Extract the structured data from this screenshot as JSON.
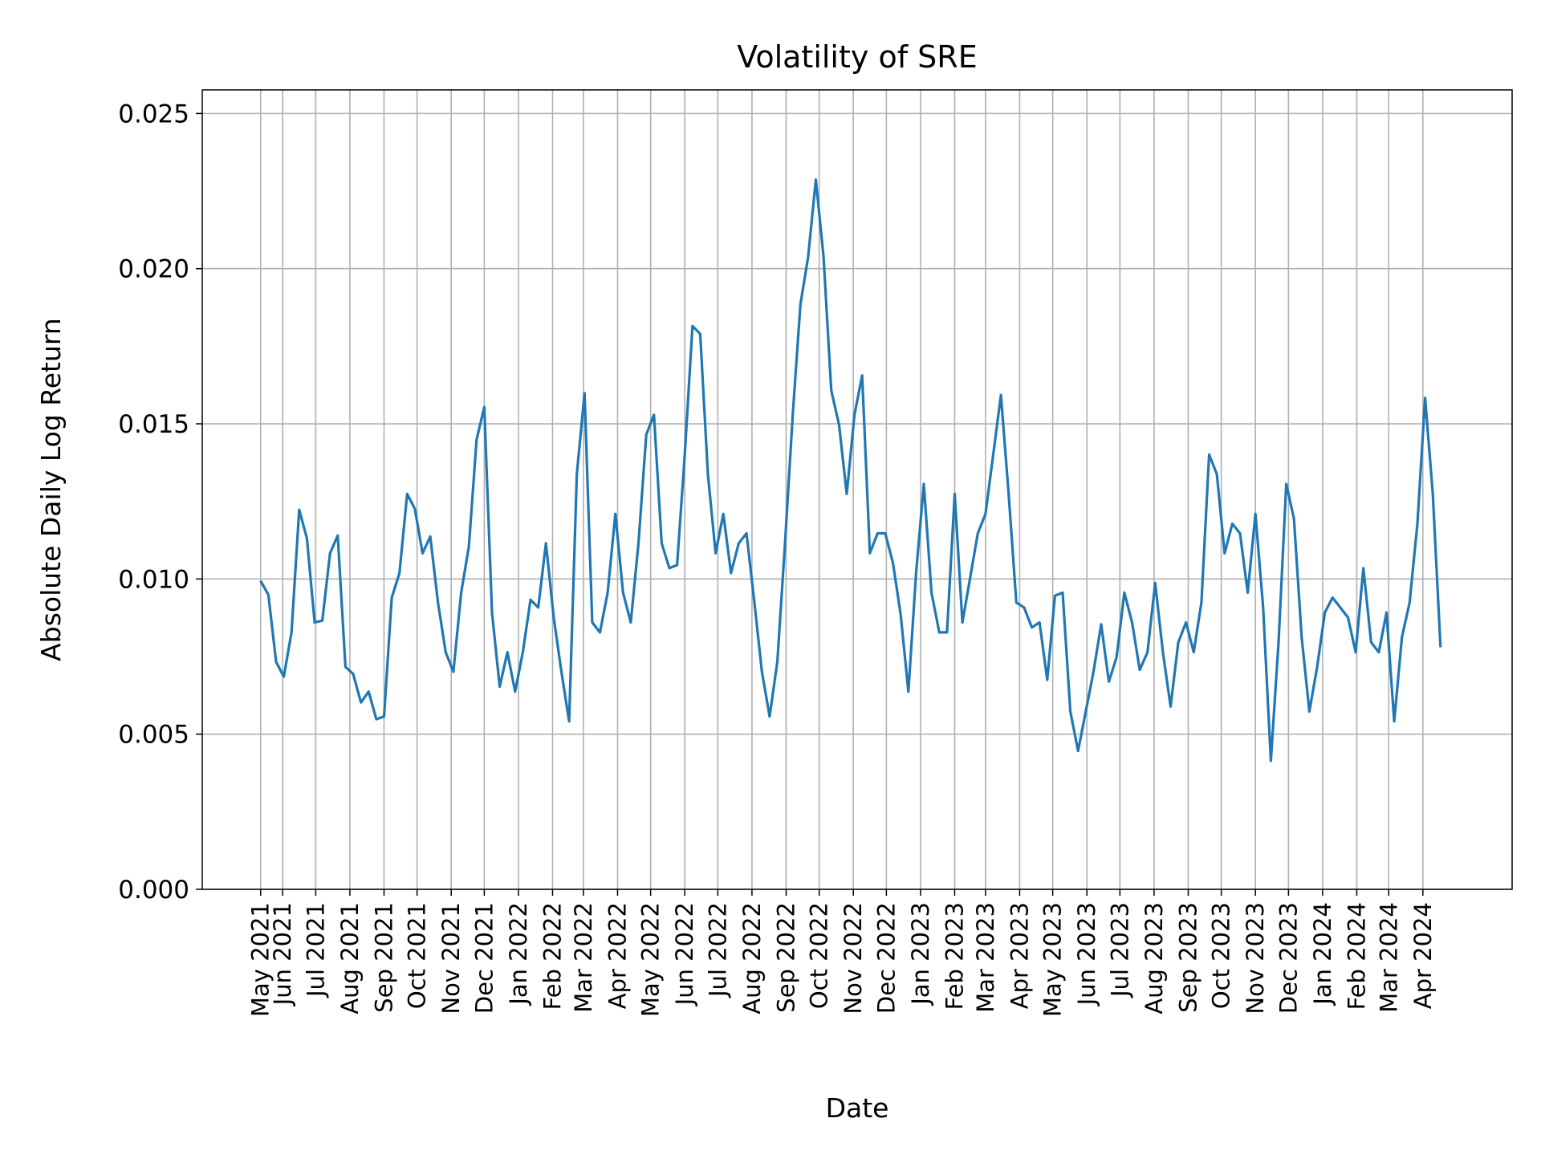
{
  "chart_data": {
    "type": "line",
    "title": "Volatility of SRE",
    "xlabel": "Date",
    "ylabel": "Absolute Daily Log Return",
    "xlim": [
      "2021-03-20",
      "2024-06-21"
    ],
    "ylim": [
      0,
      0.02576
    ],
    "grid": true,
    "line_color": "#1f77b4",
    "grid_color": "#b0b0b0",
    "yticks": [
      {
        "value": 0.0,
        "label": "0.000"
      },
      {
        "value": 0.005,
        "label": "0.005"
      },
      {
        "value": 0.01,
        "label": "0.010"
      },
      {
        "value": 0.015,
        "label": "0.015"
      },
      {
        "value": 0.02,
        "label": "0.020"
      },
      {
        "value": 0.025,
        "label": "0.025"
      }
    ],
    "xticks": [
      {
        "date": "2021-05-12",
        "label": "May 2021"
      },
      {
        "date": "2021-06-01",
        "label": "Jun 2021"
      },
      {
        "date": "2021-07-01",
        "label": "Jul 2021"
      },
      {
        "date": "2021-08-01",
        "label": "Aug 2021"
      },
      {
        "date": "2021-09-01",
        "label": "Sep 2021"
      },
      {
        "date": "2021-10-01",
        "label": "Oct 2021"
      },
      {
        "date": "2021-11-01",
        "label": "Nov 2021"
      },
      {
        "date": "2021-12-01",
        "label": "Dec 2021"
      },
      {
        "date": "2022-01-01",
        "label": "Jan 2022"
      },
      {
        "date": "2022-02-01",
        "label": "Feb 2022"
      },
      {
        "date": "2022-03-01",
        "label": "Mar 2022"
      },
      {
        "date": "2022-04-01",
        "label": "Apr 2022"
      },
      {
        "date": "2022-05-01",
        "label": "May 2022"
      },
      {
        "date": "2022-06-01",
        "label": "Jun 2022"
      },
      {
        "date": "2022-07-01",
        "label": "Jul 2022"
      },
      {
        "date": "2022-08-01",
        "label": "Aug 2022"
      },
      {
        "date": "2022-09-01",
        "label": "Sep 2022"
      },
      {
        "date": "2022-10-01",
        "label": "Oct 2022"
      },
      {
        "date": "2022-11-01",
        "label": "Nov 2022"
      },
      {
        "date": "2022-12-01",
        "label": "Dec 2022"
      },
      {
        "date": "2023-01-01",
        "label": "Jan 2023"
      },
      {
        "date": "2023-02-01",
        "label": "Feb 2023"
      },
      {
        "date": "2023-03-01",
        "label": "Mar 2023"
      },
      {
        "date": "2023-04-01",
        "label": "Apr 2023"
      },
      {
        "date": "2023-05-01",
        "label": "May 2023"
      },
      {
        "date": "2023-06-01",
        "label": "Jun 2023"
      },
      {
        "date": "2023-07-01",
        "label": "Jul 2023"
      },
      {
        "date": "2023-08-01",
        "label": "Aug 2023"
      },
      {
        "date": "2023-09-01",
        "label": "Sep 2023"
      },
      {
        "date": "2023-10-01",
        "label": "Oct 2023"
      },
      {
        "date": "2023-11-01",
        "label": "Nov 2023"
      },
      {
        "date": "2023-12-01",
        "label": "Dec 2023"
      },
      {
        "date": "2024-01-01",
        "label": "Jan 2024"
      },
      {
        "date": "2024-02-01",
        "label": "Feb 2024"
      },
      {
        "date": "2024-03-01",
        "label": "Mar 2024"
      },
      {
        "date": "2024-04-01",
        "label": "Apr 2024"
      }
    ],
    "series": [
      {
        "x": [
          "2021-05-12",
          "2021-05-19",
          "2021-05-26",
          "2021-06-02",
          "2021-06-09",
          "2021-06-16",
          "2021-06-23",
          "2021-06-30",
          "2021-07-07",
          "2021-07-14",
          "2021-07-21",
          "2021-07-28",
          "2021-08-04",
          "2021-08-11",
          "2021-08-18",
          "2021-08-25",
          "2021-09-01",
          "2021-09-08",
          "2021-09-15",
          "2021-09-22",
          "2021-09-29",
          "2021-10-06",
          "2021-10-13",
          "2021-10-20",
          "2021-10-27",
          "2021-11-03",
          "2021-11-10",
          "2021-11-17",
          "2021-11-24",
          "2021-12-01",
          "2021-12-08",
          "2021-12-15",
          "2021-12-22",
          "2021-12-29",
          "2022-01-05",
          "2022-01-12",
          "2022-01-19",
          "2022-01-26",
          "2022-02-02",
          "2022-02-09",
          "2022-02-16",
          "2022-02-23",
          "2022-03-02",
          "2022-03-09",
          "2022-03-16",
          "2022-03-23",
          "2022-03-30",
          "2022-04-06",
          "2022-04-13",
          "2022-04-20",
          "2022-04-27",
          "2022-05-04",
          "2022-05-11",
          "2022-05-18",
          "2022-05-25",
          "2022-06-01",
          "2022-06-08",
          "2022-06-15",
          "2022-06-22",
          "2022-06-29",
          "2022-07-06",
          "2022-07-13",
          "2022-07-20",
          "2022-07-27",
          "2022-08-03",
          "2022-08-10",
          "2022-08-17",
          "2022-08-24",
          "2022-08-31",
          "2022-09-07",
          "2022-09-14",
          "2022-09-21",
          "2022-09-28",
          "2022-10-05",
          "2022-10-12",
          "2022-10-19",
          "2022-10-26",
          "2022-11-02",
          "2022-11-09",
          "2022-11-16",
          "2022-11-23",
          "2022-11-30",
          "2022-12-07",
          "2022-12-14",
          "2022-12-21",
          "2022-12-28",
          "2023-01-04",
          "2023-01-11",
          "2023-01-18",
          "2023-01-25",
          "2023-02-01",
          "2023-02-08",
          "2023-02-15",
          "2023-02-22",
          "2023-03-01",
          "2023-03-08",
          "2023-03-15",
          "2023-03-22",
          "2023-03-29",
          "2023-04-05",
          "2023-04-12",
          "2023-04-19",
          "2023-04-26",
          "2023-05-03",
          "2023-05-10",
          "2023-05-17",
          "2023-05-24",
          "2023-05-31",
          "2023-06-07",
          "2023-06-14",
          "2023-06-21",
          "2023-06-28",
          "2023-07-05",
          "2023-07-12",
          "2023-07-19",
          "2023-07-26",
          "2023-08-02",
          "2023-08-09",
          "2023-08-16",
          "2023-08-23",
          "2023-08-30",
          "2023-09-06",
          "2023-09-13",
          "2023-09-20",
          "2023-09-27",
          "2023-10-04",
          "2023-10-11",
          "2023-10-18",
          "2023-10-25",
          "2023-11-01",
          "2023-11-08",
          "2023-11-15",
          "2023-11-22",
          "2023-11-29",
          "2023-12-06",
          "2023-12-13",
          "2023-12-20",
          "2023-12-27",
          "2024-01-03",
          "2024-01-10",
          "2024-01-17",
          "2024-01-24",
          "2024-01-31",
          "2024-02-07",
          "2024-02-14",
          "2024-02-21",
          "2024-02-28",
          "2024-03-06",
          "2024-03-13",
          "2024-03-20",
          "2024-03-27",
          "2024-04-03",
          "2024-04-10",
          "2024-04-17"
        ],
        "y": [
          0.00994,
          0.00949,
          0.00733,
          0.00685,
          0.00828,
          0.01223,
          0.01131,
          0.0086,
          0.00866,
          0.01083,
          0.0114,
          0.00717,
          0.00694,
          0.00602,
          0.00637,
          0.00548,
          0.00557,
          0.0094,
          0.01019,
          0.01274,
          0.01226,
          0.01083,
          0.01137,
          0.00924,
          0.00764,
          0.00701,
          0.00956,
          0.01105,
          0.01449,
          0.01554,
          0.00892,
          0.00653,
          0.00764,
          0.00637,
          0.00764,
          0.00933,
          0.00908,
          0.01115,
          0.00876,
          0.00701,
          0.00541,
          0.01338,
          0.01599,
          0.0086,
          0.00828,
          0.00956,
          0.0121,
          0.00956,
          0.0086,
          0.01115,
          0.01465,
          0.01529,
          0.01115,
          0.01035,
          0.01045,
          0.01401,
          0.01815,
          0.0179,
          0.01338,
          0.01083,
          0.0121,
          0.01019,
          0.01115,
          0.01147,
          0.0093,
          0.00701,
          0.00557,
          0.00733,
          0.01115,
          0.01529,
          0.01885,
          0.02038,
          0.02287,
          0.02038,
          0.01608,
          0.01497,
          0.01274,
          0.01529,
          0.01656,
          0.01083,
          0.01147,
          0.01147,
          0.01051,
          0.00885,
          0.00637,
          0.01019,
          0.01306,
          0.00956,
          0.00828,
          0.00828,
          0.01274,
          0.0086,
          0.01003,
          0.01147,
          0.0121,
          0.01401,
          0.01593,
          0.01274,
          0.00924,
          0.00908,
          0.00844,
          0.0086,
          0.00675,
          0.00946,
          0.00956,
          0.00573,
          0.00446,
          0.00573,
          0.00701,
          0.00854,
          0.00669,
          0.00748,
          0.00956,
          0.0086,
          0.00707,
          0.00764,
          0.00987,
          0.00764,
          0.00589,
          0.00796,
          0.0086,
          0.00764,
          0.00924,
          0.01401,
          0.01338,
          0.01083,
          0.01178,
          0.01147,
          0.00956,
          0.0121,
          0.00908,
          0.00414,
          0.00796,
          0.01306,
          0.01194,
          0.00812,
          0.00573,
          0.00717,
          0.00892,
          0.0094,
          0.00908,
          0.00876,
          0.00764,
          0.01035,
          0.00796,
          0.00764,
          0.00892,
          0.00541,
          0.00812,
          0.00924,
          0.01178,
          0.01583,
          0.01274,
          0.0078
        ]
      }
    ]
  }
}
